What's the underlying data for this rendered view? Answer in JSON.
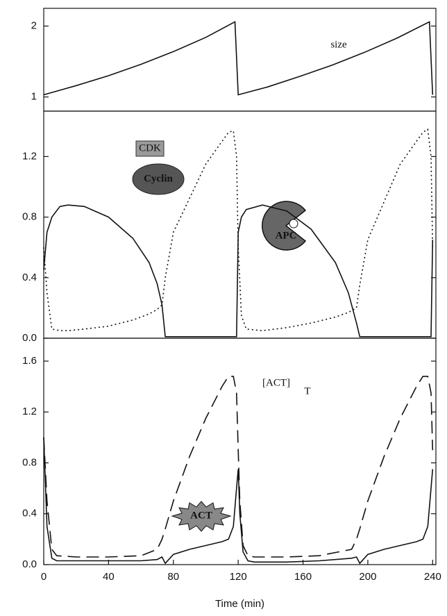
{
  "chart_data": [
    {
      "type": "line",
      "xlim": [
        0,
        242
      ],
      "ylim": [
        0.8,
        2.25
      ],
      "yticks": [
        1,
        2
      ],
      "annotations": [
        "size"
      ],
      "x": [
        0,
        20,
        40,
        60,
        80,
        100,
        118,
        120,
        138,
        158,
        178,
        198,
        218,
        238,
        240
      ],
      "series": [
        {
          "color": "#111111",
          "line_style": "solid",
          "values": [
            1.03,
            1.16,
            1.3,
            1.46,
            1.64,
            1.84,
            2.06,
            1.03,
            1.14,
            1.29,
            1.45,
            1.63,
            1.83,
            2.06,
            1.03
          ]
        }
      ]
    },
    {
      "type": "line",
      "xlim": [
        0,
        242
      ],
      "ylim": [
        0,
        1.5
      ],
      "yticks": [
        0.0,
        0.4,
        0.8,
        1.2
      ],
      "annotations": [
        "CDK",
        "Cyclin",
        "APC"
      ],
      "x": [
        0,
        2,
        5,
        10,
        15,
        25,
        40,
        55,
        65,
        70,
        73,
        75,
        80,
        100,
        110,
        114,
        117,
        119,
        120,
        122,
        125,
        135,
        150,
        165,
        180,
        188,
        193,
        195,
        200,
        220,
        230,
        234,
        237,
        239,
        240
      ],
      "series": [
        {
          "color": "#111111",
          "line_style": "solid",
          "values": [
            0.45,
            0.7,
            0.8,
            0.87,
            0.88,
            0.87,
            0.8,
            0.66,
            0.5,
            0.36,
            0.22,
            0.01,
            0.01,
            0.01,
            0.01,
            0.01,
            0.01,
            0.01,
            0.7,
            0.8,
            0.85,
            0.88,
            0.84,
            0.72,
            0.5,
            0.3,
            0.1,
            0.01,
            0.01,
            0.01,
            0.01,
            0.01,
            0.01,
            0.01,
            0.65
          ]
        },
        {
          "color": "#111111",
          "line_style": "dotted",
          "values": [
            0.6,
            0.3,
            0.06,
            0.05,
            0.05,
            0.06,
            0.08,
            0.12,
            0.16,
            0.19,
            0.22,
            0.4,
            0.7,
            1.15,
            1.3,
            1.36,
            1.37,
            1.2,
            0.6,
            0.15,
            0.06,
            0.05,
            0.07,
            0.1,
            0.14,
            0.17,
            0.2,
            0.35,
            0.65,
            1.15,
            1.3,
            1.36,
            1.38,
            1.2,
            0.6
          ]
        }
      ]
    },
    {
      "type": "line",
      "xlim": [
        0,
        242
      ],
      "ylim": [
        0,
        1.78
      ],
      "yticks": [
        0.0,
        0.4,
        0.8,
        1.2,
        1.6
      ],
      "xticks": [
        0,
        40,
        80,
        120,
        160,
        200,
        240
      ],
      "xlabel": "Time (min)",
      "annotations": [
        "[ACT]",
        "T",
        "ACT"
      ],
      "x": [
        0,
        2,
        5,
        8,
        20,
        40,
        60,
        70,
        73,
        75,
        80,
        90,
        100,
        110,
        114,
        117,
        119,
        120,
        121,
        123,
        126,
        130,
        150,
        170,
        190,
        193,
        195,
        200,
        210,
        220,
        230,
        234,
        237,
        239,
        240
      ],
      "series": [
        {
          "color": "#111111",
          "line_style": "dashed",
          "values": [
            1.0,
            0.5,
            0.12,
            0.07,
            0.06,
            0.06,
            0.07,
            0.12,
            0.2,
            0.28,
            0.5,
            0.85,
            1.15,
            1.4,
            1.48,
            1.48,
            1.35,
            0.9,
            0.5,
            0.15,
            0.07,
            0.06,
            0.06,
            0.07,
            0.12,
            0.2,
            0.28,
            0.5,
            0.85,
            1.15,
            1.4,
            1.48,
            1.48,
            1.35,
            0.9
          ]
        },
        {
          "color": "#111111",
          "line_style": "solid",
          "values": [
            1.0,
            0.3,
            0.05,
            0.03,
            0.03,
            0.03,
            0.03,
            0.04,
            0.06,
            0.01,
            0.08,
            0.12,
            0.15,
            0.18,
            0.2,
            0.3,
            0.6,
            0.75,
            0.4,
            0.1,
            0.03,
            0.02,
            0.02,
            0.03,
            0.05,
            0.06,
            0.01,
            0.08,
            0.12,
            0.15,
            0.18,
            0.2,
            0.3,
            0.6,
            0.75
          ]
        }
      ]
    }
  ]
}
